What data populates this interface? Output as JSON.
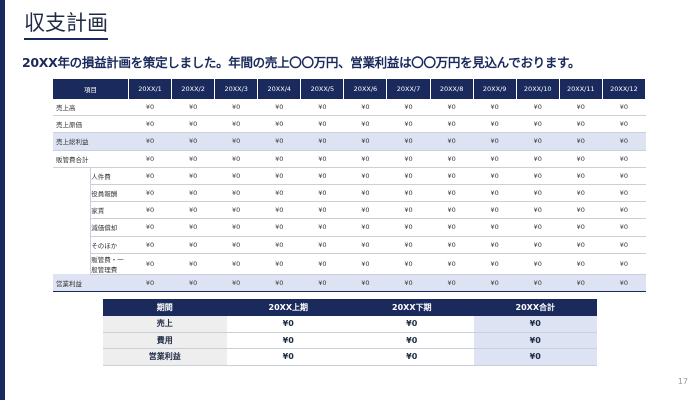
{
  "slide": {
    "title": "収支計画",
    "subtitle": "20XX年の損益計画を策定しました。年間の売上〇〇万円、営業利益は〇〇万円を見込んでおります。",
    "page_number": "17"
  },
  "main_table": {
    "item_header": "項目",
    "months": [
      "20XX/1",
      "20XX/2",
      "20XX/3",
      "20XX/4",
      "20XX/5",
      "20XX/6",
      "20XX/7",
      "20XX/8",
      "20XX/9",
      "20XX/10",
      "20XX/11",
      "20XX/12"
    ],
    "rows": [
      {
        "label": "売上高",
        "indent": false,
        "shade": false,
        "values": [
          "¥0",
          "¥0",
          "¥0",
          "¥0",
          "¥0",
          "¥0",
          "¥0",
          "¥0",
          "¥0",
          "¥0",
          "¥0",
          "¥0"
        ]
      },
      {
        "label": "売上原価",
        "indent": false,
        "shade": false,
        "values": [
          "¥0",
          "¥0",
          "¥0",
          "¥0",
          "¥0",
          "¥0",
          "¥0",
          "¥0",
          "¥0",
          "¥0",
          "¥0",
          "¥0"
        ]
      },
      {
        "label": "売上総利益",
        "indent": false,
        "shade": true,
        "values": [
          "¥0",
          "¥0",
          "¥0",
          "¥0",
          "¥0",
          "¥0",
          "¥0",
          "¥0",
          "¥0",
          "¥0",
          "¥0",
          "¥0"
        ]
      },
      {
        "label": "販管費合計",
        "indent": false,
        "shade": false,
        "values": [
          "¥0",
          "¥0",
          "¥0",
          "¥0",
          "¥0",
          "¥0",
          "¥0",
          "¥0",
          "¥0",
          "¥0",
          "¥0",
          "¥0"
        ]
      },
      {
        "label": "人件費",
        "indent": true,
        "shade": false,
        "values": [
          "¥0",
          "¥0",
          "¥0",
          "¥0",
          "¥0",
          "¥0",
          "¥0",
          "¥0",
          "¥0",
          "¥0",
          "¥0",
          "¥0"
        ]
      },
      {
        "label": "役員報酬",
        "indent": true,
        "shade": false,
        "values": [
          "¥0",
          "¥0",
          "¥0",
          "¥0",
          "¥0",
          "¥0",
          "¥0",
          "¥0",
          "¥0",
          "¥0",
          "¥0",
          "¥0"
        ]
      },
      {
        "label": "家賃",
        "indent": true,
        "shade": false,
        "values": [
          "¥0",
          "¥0",
          "¥0",
          "¥0",
          "¥0",
          "¥0",
          "¥0",
          "¥0",
          "¥0",
          "¥0",
          "¥0",
          "¥0"
        ]
      },
      {
        "label": "減価償却",
        "indent": true,
        "shade": false,
        "values": [
          "¥0",
          "¥0",
          "¥0",
          "¥0",
          "¥0",
          "¥0",
          "¥0",
          "¥0",
          "¥0",
          "¥0",
          "¥0",
          "¥0"
        ]
      },
      {
        "label": "そのほか",
        "indent": true,
        "shade": false,
        "values": [
          "¥0",
          "¥0",
          "¥0",
          "¥0",
          "¥0",
          "¥0",
          "¥0",
          "¥0",
          "¥0",
          "¥0",
          "¥0",
          "¥0"
        ]
      },
      {
        "label": "販管費・一般管理費",
        "indent": true,
        "shade": false,
        "values": [
          "¥0",
          "¥0",
          "¥0",
          "¥0",
          "¥0",
          "¥0",
          "¥0",
          "¥0",
          "¥0",
          "¥0",
          "¥0",
          "¥0"
        ]
      },
      {
        "label": "営業利益",
        "indent": false,
        "shade": true,
        "values": [
          "¥0",
          "¥0",
          "¥0",
          "¥0",
          "¥0",
          "¥0",
          "¥0",
          "¥0",
          "¥0",
          "¥0",
          "¥0",
          "¥0"
        ]
      }
    ]
  },
  "summary_table": {
    "headers": [
      "期間",
      "20XX上期",
      "20XX下期",
      "20XX合計"
    ],
    "rows": [
      {
        "label": "売上",
        "values": [
          "¥0",
          "¥0",
          "¥0"
        ]
      },
      {
        "label": "費用",
        "values": [
          "¥0",
          "¥0",
          "¥0"
        ]
      },
      {
        "label": "営業利益",
        "values": [
          "¥0",
          "¥0",
          "¥0"
        ]
      }
    ]
  },
  "colors": {
    "navy": "#1a2a5c",
    "shade": "#dde3f3",
    "rowhead_gray": "#eeeeee"
  }
}
